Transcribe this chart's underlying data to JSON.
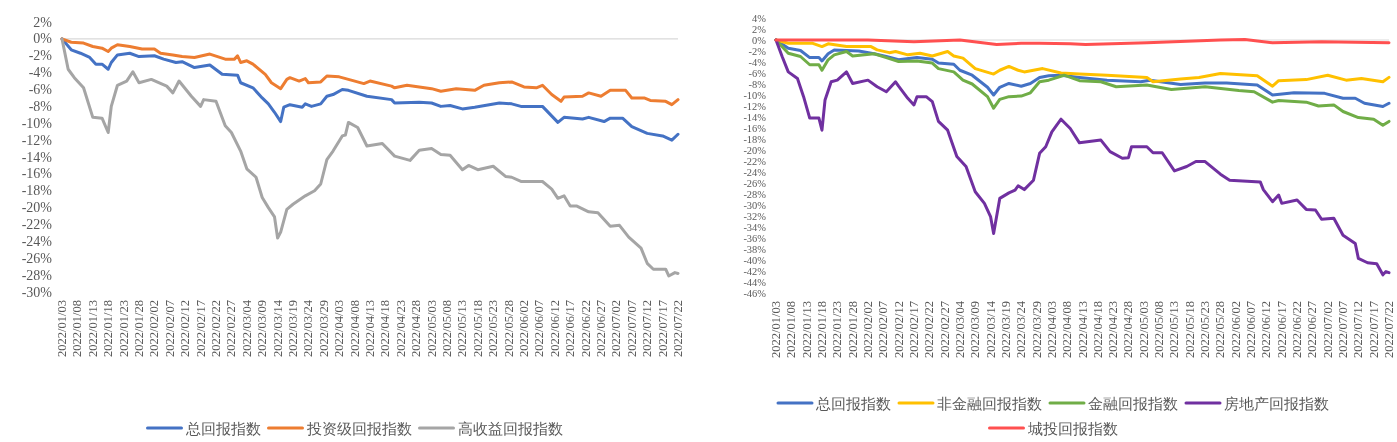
{
  "chart_data": [
    {
      "type": "line",
      "legend": "bottom",
      "xlim": [
        "2022-01-03",
        "2022-07-22"
      ],
      "xticks": [
        {
          "value": "2022-01-03",
          "label": "2022/01/03"
        },
        {
          "value": "2022-01-08",
          "label": "2022/01/08"
        },
        {
          "value": "2022-01-13",
          "label": "2022/01/13"
        },
        {
          "value": "2022-01-18",
          "label": "2022/01/18"
        },
        {
          "value": "2022-01-23",
          "label": "2022/01/23"
        },
        {
          "value": "2022-01-28",
          "label": "2022/01/28"
        },
        {
          "value": "2022-02-02",
          "label": "2022/02/02"
        },
        {
          "value": "2022-02-07",
          "label": "2022/02/07"
        },
        {
          "value": "2022-02-12",
          "label": "2022/02/12"
        },
        {
          "value": "2022-02-17",
          "label": "2022/02/17"
        },
        {
          "value": "2022-02-22",
          "label": "2022/02/22"
        },
        {
          "value": "2022-02-27",
          "label": "2022/02/27"
        },
        {
          "value": "2022-03-04",
          "label": "2022/03/04"
        },
        {
          "value": "2022-03-09",
          "label": "2022/03/09"
        },
        {
          "value": "2022-03-14",
          "label": "2022/03/14"
        },
        {
          "value": "2022-03-19",
          "label": "2022/03/19"
        },
        {
          "value": "2022-03-24",
          "label": "2022/03/24"
        },
        {
          "value": "2022-03-29",
          "label": "2022/03/29"
        },
        {
          "value": "2022-04-03",
          "label": "2022/04/03"
        },
        {
          "value": "2022-04-08",
          "label": "2022/04/08"
        },
        {
          "value": "2022-04-13",
          "label": "2022/04/13"
        },
        {
          "value": "2022-04-18",
          "label": "2022/04/18"
        },
        {
          "value": "2022-04-23",
          "label": "2022/04/23"
        },
        {
          "value": "2022-04-28",
          "label": "2022/04/28"
        },
        {
          "value": "2022-05-03",
          "label": "2022/05/03"
        },
        {
          "value": "2022-05-08",
          "label": "2022/05/08"
        },
        {
          "value": "2022-05-13",
          "label": "2022/05/13"
        },
        {
          "value": "2022-05-18",
          "label": "2022/05/18"
        },
        {
          "value": "2022-05-23",
          "label": "2022/05/23"
        },
        {
          "value": "2022-05-28",
          "label": "2022/05/28"
        },
        {
          "value": "2022-06-02",
          "label": "2022/06/02"
        },
        {
          "value": "2022-06-07",
          "label": "2022/06/07"
        },
        {
          "value": "2022-06-12",
          "label": "2022/06/12"
        },
        {
          "value": "2022-06-17",
          "label": "2022/06/17"
        },
        {
          "value": "2022-06-22",
          "label": "2022/06/22"
        },
        {
          "value": "2022-06-27",
          "label": "2022/06/27"
        },
        {
          "value": "2022-07-02",
          "label": "2022/07/02"
        },
        {
          "value": "2022-07-07",
          "label": "2022/07/07"
        },
        {
          "value": "2022-07-12",
          "label": "2022/07/12"
        },
        {
          "value": "2022-07-17",
          "label": "2022/07/17"
        },
        {
          "value": "2022-07-22",
          "label": "2022/07/22"
        }
      ],
      "ylim": [
        -30,
        2
      ],
      "yticks": [
        {
          "value": 2,
          "label": "2%"
        },
        {
          "value": 0,
          "label": "0%"
        },
        {
          "value": -2,
          "label": "-2%"
        },
        {
          "value": -4,
          "label": "-4%"
        },
        {
          "value": -6,
          "label": "-6%"
        },
        {
          "value": -8,
          "label": "-8%"
        },
        {
          "value": -10,
          "label": "-10%"
        },
        {
          "value": -12,
          "label": "-12%"
        },
        {
          "value": -14,
          "label": "-14%"
        },
        {
          "value": -16,
          "label": "-16%"
        },
        {
          "value": -18,
          "label": "-18%"
        },
        {
          "value": -20,
          "label": "-20%"
        },
        {
          "value": -22,
          "label": "-22%"
        },
        {
          "value": -24,
          "label": "-24%"
        },
        {
          "value": -26,
          "label": "-26%"
        },
        {
          "value": -28,
          "label": "-28%"
        },
        {
          "value": -30,
          "label": "-30%"
        }
      ],
      "series": [
        {
          "name": "总回报指数",
          "color": "#4472c4",
          "x": [
            "2022-01-03",
            "2022-01-06",
            "2022-01-09",
            "2022-01-12",
            "2022-01-14",
            "2022-01-16",
            "2022-01-18",
            "2022-01-19",
            "2022-01-21",
            "2022-01-25",
            "2022-01-28",
            "2022-02-02",
            "2022-02-05",
            "2022-02-09",
            "2022-02-11",
            "2022-02-15",
            "2022-02-20",
            "2022-02-24",
            "2022-03-01",
            "2022-03-02",
            "2022-03-06",
            "2022-03-09",
            "2022-03-11",
            "2022-03-13",
            "2022-03-15",
            "2022-03-16",
            "2022-03-18",
            "2022-03-22",
            "2022-03-23",
            "2022-03-25",
            "2022-03-28",
            "2022-03-30",
            "2022-04-01",
            "2022-04-04",
            "2022-04-06",
            "2022-04-12",
            "2022-04-20",
            "2022-04-21",
            "2022-04-29",
            "2022-05-03",
            "2022-05-06",
            "2022-05-09",
            "2022-05-13",
            "2022-05-17",
            "2022-05-25",
            "2022-05-29",
            "2022-06-01",
            "2022-06-08",
            "2022-06-13",
            "2022-06-15",
            "2022-06-21",
            "2022-06-23",
            "2022-06-28",
            "2022-06-30",
            "2022-07-04",
            "2022-07-07",
            "2022-07-12",
            "2022-07-17",
            "2022-07-20",
            "2022-07-22"
          ],
          "values": [
            0,
            -1.3,
            -1.7,
            -2.2,
            -3.0,
            -3.0,
            -3.6,
            -2.8,
            -1.9,
            -1.7,
            -2.1,
            -2.0,
            -2.4,
            -2.8,
            -2.7,
            -3.4,
            -3.1,
            -4.2,
            -4.3,
            -5.2,
            -5.8,
            -7.0,
            -7.7,
            -8.7,
            -9.8,
            -8.1,
            -7.8,
            -8.1,
            -7.7,
            -8.0,
            -7.7,
            -6.8,
            -6.6,
            -6.0,
            -6.1,
            -6.8,
            -7.2,
            -7.6,
            -7.5,
            -7.6,
            -8.0,
            -7.9,
            -8.3,
            -8.1,
            -7.6,
            -7.7,
            -8.0,
            -8.0,
            -9.9,
            -9.3,
            -9.5,
            -9.3,
            -9.8,
            -9.4,
            -9.4,
            -10.4,
            -11.2,
            -11.5,
            -12.0,
            -11.3
          ]
        },
        {
          "name": "投资级回报指数",
          "color": "#ed7d31",
          "x": [
            "2022-01-03",
            "2022-01-06",
            "2022-01-10",
            "2022-01-13",
            "2022-01-16",
            "2022-01-18",
            "2022-01-19",
            "2022-01-21",
            "2022-01-25",
            "2022-01-29",
            "2022-02-02",
            "2022-02-04",
            "2022-02-08",
            "2022-02-11",
            "2022-02-15",
            "2022-02-20",
            "2022-02-25",
            "2022-02-28",
            "2022-03-01",
            "2022-03-02",
            "2022-03-04",
            "2022-03-06",
            "2022-03-10",
            "2022-03-12",
            "2022-03-15",
            "2022-03-17",
            "2022-03-18",
            "2022-03-21",
            "2022-03-23",
            "2022-03-24",
            "2022-03-28",
            "2022-03-30",
            "2022-04-03",
            "2022-04-06",
            "2022-04-11",
            "2022-04-13",
            "2022-04-20",
            "2022-04-21",
            "2022-04-25",
            "2022-05-03",
            "2022-05-06",
            "2022-05-11",
            "2022-05-17",
            "2022-05-20",
            "2022-05-25",
            "2022-05-29",
            "2022-06-02",
            "2022-06-06",
            "2022-06-08",
            "2022-06-11",
            "2022-06-14",
            "2022-06-15",
            "2022-06-21",
            "2022-06-23",
            "2022-06-27",
            "2022-06-30",
            "2022-07-05",
            "2022-07-07",
            "2022-07-11",
            "2022-07-13",
            "2022-07-18",
            "2022-07-20",
            "2022-07-22"
          ],
          "values": [
            0,
            -0.4,
            -0.5,
            -0.9,
            -1.1,
            -1.5,
            -1.1,
            -0.7,
            -0.9,
            -1.2,
            -1.2,
            -1.7,
            -1.9,
            -2.1,
            -2.2,
            -1.8,
            -2.4,
            -2.4,
            -2.0,
            -2.8,
            -2.6,
            -3.0,
            -4.2,
            -5.2,
            -5.9,
            -4.8,
            -4.6,
            -5.0,
            -4.7,
            -5.2,
            -5.1,
            -4.4,
            -4.5,
            -4.8,
            -5.3,
            -5.0,
            -5.6,
            -5.8,
            -5.5,
            -5.9,
            -6.2,
            -5.9,
            -6.1,
            -5.5,
            -5.2,
            -5.1,
            -5.7,
            -5.8,
            -5.5,
            -6.6,
            -7.4,
            -6.9,
            -6.8,
            -6.4,
            -6.8,
            -6.1,
            -6.1,
            -7.0,
            -7.0,
            -7.3,
            -7.4,
            -7.8,
            -7.2
          ]
        },
        {
          "name": "高收益回报指数",
          "color": "#a5a5a5",
          "x": [
            "2022-01-03",
            "2022-01-05",
            "2022-01-07",
            "2022-01-10",
            "2022-01-13",
            "2022-01-16",
            "2022-01-18",
            "2022-01-19",
            "2022-01-21",
            "2022-01-24",
            "2022-01-26",
            "2022-01-28",
            "2022-02-01",
            "2022-02-06",
            "2022-02-08",
            "2022-02-10",
            "2022-02-14",
            "2022-02-17",
            "2022-02-18",
            "2022-02-22",
            "2022-02-25",
            "2022-02-27",
            "2022-03-02",
            "2022-03-04",
            "2022-03-07",
            "2022-03-09",
            "2022-03-11",
            "2022-03-13",
            "2022-03-14",
            "2022-03-15",
            "2022-03-17",
            "2022-03-19",
            "2022-03-23",
            "2022-03-26",
            "2022-03-28",
            "2022-03-30",
            "2022-04-01",
            "2022-04-04",
            "2022-04-05",
            "2022-04-06",
            "2022-04-09",
            "2022-04-12",
            "2022-04-17",
            "2022-04-21",
            "2022-04-26",
            "2022-04-29",
            "2022-05-03",
            "2022-05-06",
            "2022-05-09",
            "2022-05-13",
            "2022-05-15",
            "2022-05-18",
            "2022-05-23",
            "2022-05-27",
            "2022-05-29",
            "2022-06-01",
            "2022-06-08",
            "2022-06-11",
            "2022-06-13",
            "2022-06-15",
            "2022-06-17",
            "2022-06-19",
            "2022-06-23",
            "2022-06-26",
            "2022-06-30",
            "2022-07-03",
            "2022-07-06",
            "2022-07-10",
            "2022-07-12",
            "2022-07-14",
            "2022-07-18",
            "2022-07-19",
            "2022-07-21",
            "2022-07-22"
          ],
          "values": [
            0,
            -3.6,
            -4.6,
            -5.8,
            -9.3,
            -9.4,
            -11.1,
            -8.0,
            -5.5,
            -5.0,
            -3.9,
            -5.2,
            -4.8,
            -5.6,
            -6.4,
            -5.0,
            -6.8,
            -8.0,
            -7.2,
            -7.4,
            -10.3,
            -11.1,
            -13.3,
            -15.4,
            -16.4,
            -18.8,
            -20.0,
            -21.1,
            -23.6,
            -22.9,
            -20.2,
            -19.6,
            -18.6,
            -18.0,
            -17.2,
            -14.3,
            -13.3,
            -11.5,
            -11.4,
            -9.9,
            -10.5,
            -12.7,
            -12.4,
            -13.9,
            -14.4,
            -13.2,
            -13.0,
            -13.7,
            -13.8,
            -15.5,
            -15.0,
            -15.5,
            -15.1,
            -16.3,
            -16.4,
            -16.9,
            -16.9,
            -17.8,
            -18.9,
            -18.6,
            -19.8,
            -19.8,
            -20.5,
            -20.6,
            -22.2,
            -22.1,
            -23.5,
            -24.8,
            -26.6,
            -27.3,
            -27.3,
            -28.1,
            -27.7,
            -27.8
          ]
        }
      ]
    },
    {
      "type": "line",
      "legend": "bottom",
      "xlim": [
        "2022-01-03",
        "2022-07-22"
      ],
      "xticks": [
        {
          "value": "2022-01-03",
          "label": "2022/01/03"
        },
        {
          "value": "2022-01-08",
          "label": "2022/01/08"
        },
        {
          "value": "2022-01-13",
          "label": "2022/01/13"
        },
        {
          "value": "2022-01-18",
          "label": "2022/01/18"
        },
        {
          "value": "2022-01-23",
          "label": "2022/01/23"
        },
        {
          "value": "2022-01-28",
          "label": "2022/01/28"
        },
        {
          "value": "2022-02-02",
          "label": "2022/02/02"
        },
        {
          "value": "2022-02-07",
          "label": "2022/02/07"
        },
        {
          "value": "2022-02-12",
          "label": "2022/02/12"
        },
        {
          "value": "2022-02-17",
          "label": "2022/02/17"
        },
        {
          "value": "2022-02-22",
          "label": "2022/02/22"
        },
        {
          "value": "2022-02-27",
          "label": "2022/02/27"
        },
        {
          "value": "2022-03-04",
          "label": "2022/03/04"
        },
        {
          "value": "2022-03-09",
          "label": "2022/03/09"
        },
        {
          "value": "2022-03-14",
          "label": "2022/03/14"
        },
        {
          "value": "2022-03-19",
          "label": "2022/03/19"
        },
        {
          "value": "2022-03-24",
          "label": "2022/03/24"
        },
        {
          "value": "2022-03-29",
          "label": "2022/03/29"
        },
        {
          "value": "2022-04-03",
          "label": "2022/04/03"
        },
        {
          "value": "2022-04-08",
          "label": "2022/04/08"
        },
        {
          "value": "2022-04-13",
          "label": "2022/04/13"
        },
        {
          "value": "2022-04-18",
          "label": "2022/04/18"
        },
        {
          "value": "2022-04-23",
          "label": "2022/04/23"
        },
        {
          "value": "2022-04-28",
          "label": "2022/04/28"
        },
        {
          "value": "2022-05-03",
          "label": "2022/05/03"
        },
        {
          "value": "2022-05-08",
          "label": "2022/05/08"
        },
        {
          "value": "2022-05-13",
          "label": "2022/05/13"
        },
        {
          "value": "2022-05-18",
          "label": "2022/05/18"
        },
        {
          "value": "2022-05-23",
          "label": "2022/05/23"
        },
        {
          "value": "2022-05-28",
          "label": "2022/05/28"
        },
        {
          "value": "2022-06-02",
          "label": "2022/06/02"
        },
        {
          "value": "2022-06-07",
          "label": "2022/06/07"
        },
        {
          "value": "2022-06-12",
          "label": "2022/06/12"
        },
        {
          "value": "2022-06-17",
          "label": "2022/06/17"
        },
        {
          "value": "2022-06-22",
          "label": "2022/06/22"
        },
        {
          "value": "2022-06-27",
          "label": "2022/06/27"
        },
        {
          "value": "2022-07-02",
          "label": "2022/07/02"
        },
        {
          "value": "2022-07-07",
          "label": "2022/07/07"
        },
        {
          "value": "2022-07-12",
          "label": "2022/07/12"
        },
        {
          "value": "2022-07-17",
          "label": "2022/07/17"
        },
        {
          "value": "2022-07-22",
          "label": "2022/07/22"
        }
      ],
      "ylim": [
        -46,
        4
      ],
      "yticks": [
        {
          "value": 4,
          "label": "4%"
        },
        {
          "value": 2,
          "label": "2%"
        },
        {
          "value": 0,
          "label": "0%"
        },
        {
          "value": -2,
          "label": "-2%"
        },
        {
          "value": -4,
          "label": "-4%"
        },
        {
          "value": -6,
          "label": "-6%"
        },
        {
          "value": -8,
          "label": "-8%"
        },
        {
          "value": -10,
          "label": "-10%"
        },
        {
          "value": -12,
          "label": "-12%"
        },
        {
          "value": -14,
          "label": "-14%"
        },
        {
          "value": -16,
          "label": "-16%"
        },
        {
          "value": -18,
          "label": "-18%"
        },
        {
          "value": -20,
          "label": "-20%"
        },
        {
          "value": -22,
          "label": "-22%"
        },
        {
          "value": -24,
          "label": "-24%"
        },
        {
          "value": -26,
          "label": "-26%"
        },
        {
          "value": -28,
          "label": "-28%"
        },
        {
          "value": -30,
          "label": "-30%"
        },
        {
          "value": -32,
          "label": "-32%"
        },
        {
          "value": -34,
          "label": "-34%"
        },
        {
          "value": -36,
          "label": "-36%"
        },
        {
          "value": -38,
          "label": "-38%"
        },
        {
          "value": -40,
          "label": "-40%"
        },
        {
          "value": -42,
          "label": "-42%"
        },
        {
          "value": -44,
          "label": "-44%"
        },
        {
          "value": -46,
          "label": "-46%"
        }
      ],
      "series": [
        {
          "name": "总回报指数",
          "color": "#4472c4",
          "x": [
            "2022-01-03",
            "2022-01-07",
            "2022-01-11",
            "2022-01-14",
            "2022-01-17",
            "2022-01-18",
            "2022-01-20",
            "2022-01-22",
            "2022-01-26",
            "2022-01-30",
            "2022-02-04",
            "2022-02-08",
            "2022-02-12",
            "2022-02-18",
            "2022-02-23",
            "2022-02-25",
            "2022-03-02",
            "2022-03-04",
            "2022-03-08",
            "2022-03-13",
            "2022-03-15",
            "2022-03-17",
            "2022-03-20",
            "2022-03-24",
            "2022-03-27",
            "2022-03-30",
            "2022-04-02",
            "2022-04-06",
            "2022-04-12",
            "2022-04-21",
            "2022-05-02",
            "2022-05-05",
            "2022-05-15",
            "2022-05-23",
            "2022-05-30",
            "2022-06-09",
            "2022-06-14",
            "2022-06-21",
            "2022-07-01",
            "2022-07-07",
            "2022-07-11",
            "2022-07-14",
            "2022-07-20",
            "2022-07-22"
          ],
          "values": [
            0,
            -1.5,
            -1.9,
            -3.2,
            -3.2,
            -3.8,
            -2.5,
            -1.8,
            -1.9,
            -2.0,
            -2.5,
            -3.0,
            -3.6,
            -3.2,
            -3.5,
            -4.2,
            -4.4,
            -5.5,
            -6.4,
            -8.6,
            -10.0,
            -8.6,
            -7.9,
            -8.4,
            -7.9,
            -6.8,
            -6.5,
            -6.4,
            -6.8,
            -7.3,
            -7.6,
            -7.3,
            -8.1,
            -7.8,
            -7.8,
            -8.2,
            -10.0,
            -9.6,
            -9.7,
            -10.6,
            -10.6,
            -11.5,
            -12.1,
            -11.5
          ]
        },
        {
          "name": "非金融回报指数",
          "color": "#ffc000",
          "x": [
            "2022-01-03",
            "2022-01-07",
            "2022-01-15",
            "2022-01-18",
            "2022-01-20",
            "2022-01-26",
            "2022-02-03",
            "2022-02-05",
            "2022-02-09",
            "2022-02-11",
            "2022-02-15",
            "2022-02-19",
            "2022-02-23",
            "2022-02-28",
            "2022-03-02",
            "2022-03-05",
            "2022-03-09",
            "2022-03-15",
            "2022-03-17",
            "2022-03-20",
            "2022-03-23",
            "2022-03-25",
            "2022-03-28",
            "2022-03-31",
            "2022-04-06",
            "2022-04-12",
            "2022-04-21",
            "2022-05-04",
            "2022-05-06",
            "2022-05-15",
            "2022-05-21",
            "2022-05-28",
            "2022-06-09",
            "2022-06-14",
            "2022-06-16",
            "2022-06-25",
            "2022-07-02",
            "2022-07-08",
            "2022-07-13",
            "2022-07-20",
            "2022-07-22"
          ],
          "values": [
            0,
            -0.6,
            -0.6,
            -1.2,
            -0.7,
            -1.2,
            -1.2,
            -1.8,
            -2.3,
            -2.1,
            -2.7,
            -2.4,
            -2.9,
            -2.1,
            -2.9,
            -3.3,
            -5.2,
            -6.2,
            -5.5,
            -4.8,
            -5.5,
            -5.8,
            -5.5,
            -5.2,
            -6.0,
            -6.2,
            -6.4,
            -6.8,
            -7.6,
            -7.1,
            -6.8,
            -6.1,
            -6.5,
            -8.4,
            -7.4,
            -7.2,
            -6.4,
            -7.3,
            -7.0,
            -7.6,
            -6.8
          ]
        },
        {
          "name": "金融回报指数",
          "color": "#70ad47",
          "x": [
            "2022-01-03",
            "2022-01-07",
            "2022-01-11",
            "2022-01-14",
            "2022-01-17",
            "2022-01-18",
            "2022-01-20",
            "2022-01-22",
            "2022-01-26",
            "2022-01-28",
            "2022-02-04",
            "2022-02-08",
            "2022-02-12",
            "2022-02-18",
            "2022-02-23",
            "2022-02-25",
            "2022-03-02",
            "2022-03-05",
            "2022-03-08",
            "2022-03-13",
            "2022-03-15",
            "2022-03-17",
            "2022-03-20",
            "2022-03-24",
            "2022-03-27",
            "2022-03-30",
            "2022-04-02",
            "2022-04-07",
            "2022-04-12",
            "2022-04-19",
            "2022-04-24",
            "2022-05-04",
            "2022-05-12",
            "2022-05-23",
            "2022-06-03",
            "2022-06-08",
            "2022-06-14",
            "2022-06-16",
            "2022-06-25",
            "2022-06-29",
            "2022-07-04",
            "2022-07-07",
            "2022-07-12",
            "2022-07-17",
            "2022-07-20",
            "2022-07-22"
          ],
          "values": [
            0,
            -2.4,
            -3.0,
            -4.5,
            -4.5,
            -5.5,
            -3.6,
            -2.7,
            -2.1,
            -2.9,
            -2.5,
            -3.2,
            -3.9,
            -3.8,
            -4.2,
            -5.2,
            -5.8,
            -7.3,
            -8.0,
            -10.3,
            -12.4,
            -10.8,
            -10.3,
            -10.2,
            -9.6,
            -7.6,
            -7.3,
            -6.4,
            -7.4,
            -7.6,
            -8.5,
            -8.2,
            -9.0,
            -8.5,
            -9.2,
            -9.4,
            -11.3,
            -11.0,
            -11.3,
            -12.0,
            -11.8,
            -13.0,
            -14.1,
            -14.4,
            -15.5,
            -14.8
          ]
        },
        {
          "name": "房地产回报指数",
          "color": "#7030a0",
          "x": [
            "2022-01-03",
            "2022-01-05",
            "2022-01-07",
            "2022-01-10",
            "2022-01-12",
            "2022-01-14",
            "2022-01-17",
            "2022-01-18",
            "2022-01-19",
            "2022-01-21",
            "2022-01-23",
            "2022-01-26",
            "2022-01-28",
            "2022-02-02",
            "2022-02-05",
            "2022-02-08",
            "2022-02-11",
            "2022-02-12",
            "2022-02-15",
            "2022-02-17",
            "2022-02-18",
            "2022-02-21",
            "2022-02-23",
            "2022-02-25",
            "2022-02-28",
            "2022-03-03",
            "2022-03-06",
            "2022-03-09",
            "2022-03-12",
            "2022-03-14",
            "2022-03-15",
            "2022-03-17",
            "2022-03-20",
            "2022-03-22",
            "2022-03-23",
            "2022-03-25",
            "2022-03-28",
            "2022-03-30",
            "2022-04-01",
            "2022-04-03",
            "2022-04-06",
            "2022-04-09",
            "2022-04-12",
            "2022-04-19",
            "2022-04-22",
            "2022-04-26",
            "2022-04-28",
            "2022-04-29",
            "2022-05-04",
            "2022-05-06",
            "2022-05-09",
            "2022-05-13",
            "2022-05-17",
            "2022-05-20",
            "2022-05-23",
            "2022-05-28",
            "2022-05-31",
            "2022-06-10",
            "2022-06-11",
            "2022-06-14",
            "2022-06-16",
            "2022-06-17",
            "2022-06-22",
            "2022-06-25",
            "2022-06-28",
            "2022-06-30",
            "2022-07-04",
            "2022-07-07",
            "2022-07-11",
            "2022-07-12",
            "2022-07-15",
            "2022-07-18",
            "2022-07-20",
            "2022-07-21",
            "2022-07-22"
          ],
          "values": [
            0,
            -3.0,
            -5.8,
            -7.0,
            -10.3,
            -14.2,
            -14.2,
            -16.4,
            -10.9,
            -7.6,
            -7.3,
            -5.8,
            -7.9,
            -7.3,
            -8.5,
            -9.4,
            -7.6,
            -8.4,
            -10.6,
            -11.8,
            -10.3,
            -10.3,
            -11.2,
            -14.8,
            -16.4,
            -21.2,
            -23.0,
            -27.6,
            -29.7,
            -32.1,
            -35.2,
            -28.8,
            -27.8,
            -27.3,
            -26.5,
            -27.2,
            -25.5,
            -20.6,
            -19.4,
            -16.7,
            -14.4,
            -16.1,
            -18.7,
            -18.2,
            -20.3,
            -21.5,
            -21.4,
            -19.4,
            -19.4,
            -20.5,
            -20.5,
            -23.8,
            -23.0,
            -22.1,
            -22.1,
            -24.4,
            -25.5,
            -25.8,
            -27.2,
            -29.4,
            -28.2,
            -29.7,
            -29.1,
            -30.8,
            -30.9,
            -32.6,
            -32.4,
            -35.5,
            -37.0,
            -39.7,
            -40.5,
            -40.7,
            -42.7,
            -42.1,
            -42.3
          ]
        },
        {
          "name": "城投回报指数",
          "color": "#ff5050",
          "x": [
            "2022-01-03",
            "2022-02-02",
            "2022-02-17",
            "2022-03-04",
            "2022-03-16",
            "2022-03-24",
            "2022-03-30",
            "2022-04-09",
            "2022-04-14",
            "2022-05-04",
            "2022-05-28",
            "2022-06-05",
            "2022-06-14",
            "2022-06-30",
            "2022-07-22"
          ],
          "values": [
            0,
            0,
            -0.3,
            0,
            -0.8,
            -0.6,
            -0.6,
            -0.7,
            -0.8,
            -0.5,
            0,
            0.1,
            -0.5,
            -0.3,
            -0.5
          ]
        }
      ]
    }
  ]
}
